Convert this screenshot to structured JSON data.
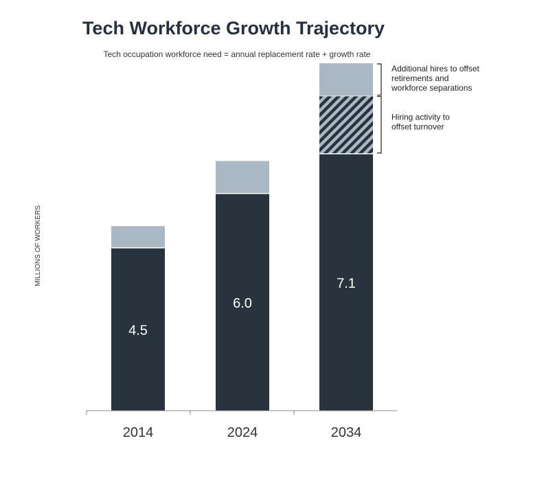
{
  "chart_data": {
    "type": "bar",
    "title": "Tech Workforce Growth Trajectory",
    "subtitle": "Tech occupation workforce need = annual replacement rate + growth rate",
    "ylabel": "MILLIONS OF WORKERS",
    "xlabel": "",
    "ylim": [
      0,
      10
    ],
    "categories": [
      "2014",
      "2024",
      "2034"
    ],
    "series": [
      {
        "key": "base",
        "values": [
          4.5,
          6.0,
          7.1
        ]
      },
      {
        "key": "turnover",
        "values": [
          0,
          0,
          1.6
        ]
      },
      {
        "key": "additional",
        "values": [
          0.6,
          0.9,
          0.9
        ]
      }
    ],
    "data_labels": [
      "4.5",
      "6.0",
      "7.1"
    ],
    "annotations": [
      {
        "text": [
          "Additional hires to offset",
          "retirements and",
          "workforce separations"
        ],
        "target": "additional"
      },
      {
        "text": [
          "Hiring activity to",
          "offset turnover"
        ],
        "target": "turnover"
      }
    ],
    "colors": {
      "base": "#28333e",
      "additional": "#aab8c3",
      "hatch": "#aab8c3",
      "axis": "#888888",
      "title": "#263040"
    },
    "grid": false,
    "legend": "none"
  }
}
